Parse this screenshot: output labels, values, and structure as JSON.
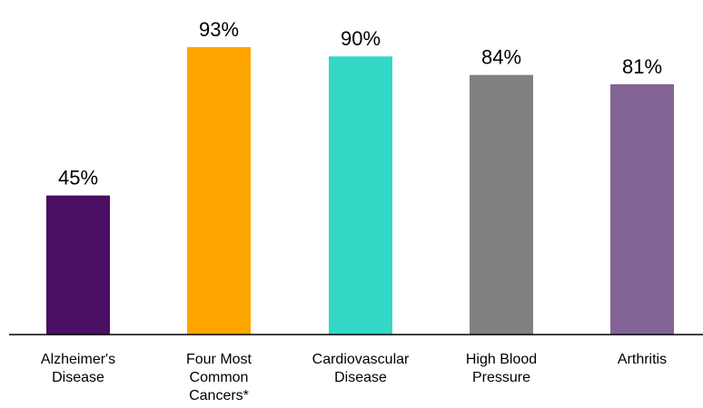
{
  "chart_data": {
    "type": "bar",
    "categories": [
      [
        "Alzheimer's",
        "Disease"
      ],
      [
        "Four Most",
        "Common",
        "Cancers*"
      ],
      [
        "Cardiovascular",
        "Disease"
      ],
      [
        "High Blood",
        "Pressure"
      ],
      [
        "Arthritis"
      ]
    ],
    "values": [
      45,
      93,
      90,
      84,
      81
    ],
    "value_labels": [
      "45%",
      "93%",
      "90%",
      "84%",
      "81%"
    ],
    "colors": [
      "#4a0e62",
      "#ffa500",
      "#33d9c6",
      "#808183",
      "#826596"
    ],
    "axis_color": "#000000",
    "ylim": [
      0,
      100
    ],
    "grid": false,
    "legend": "none"
  }
}
